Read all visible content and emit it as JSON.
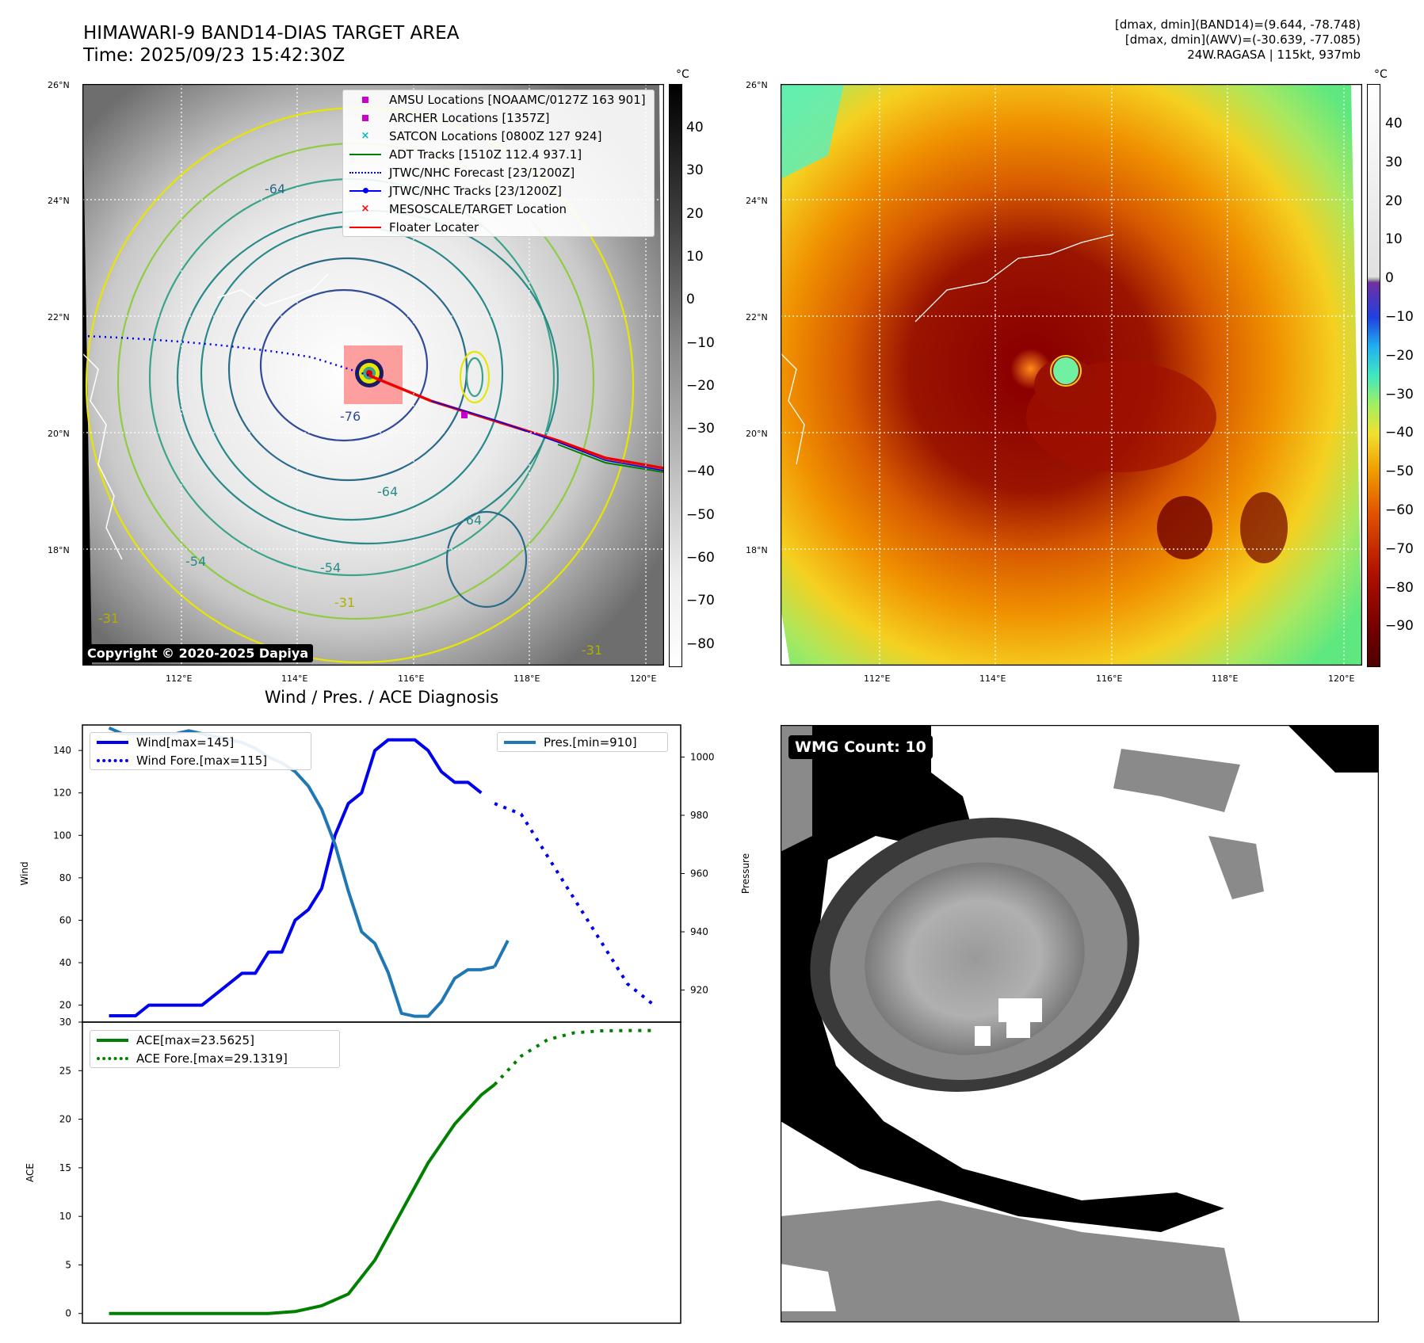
{
  "header": {
    "title_line1": "HIMAWARI-9 BAND14-DIAS TARGET AREA",
    "title_line2": "Time: 2025/09/23 15:42:30Z",
    "right_line1": "[dmax, dmin](BAND14)=(9.644, -78.748)",
    "right_line2": "[dmax, dmin](AWV)=(-30.639, -77.085)",
    "right_line3": "24W.RAGASA | 115kt, 937mb"
  },
  "map": {
    "lat_ticks": [
      "26°N",
      "24°N",
      "22°N",
      "20°N",
      "18°N"
    ],
    "lon_ticks": [
      "112°E",
      "114°E",
      "116°E",
      "118°E",
      "120°E"
    ],
    "colorbar_unit": "°C",
    "left_cb_ticks": [
      "40",
      "30",
      "20",
      "10",
      "0",
      "−10",
      "−20",
      "−30",
      "−40",
      "−50",
      "−60",
      "−70",
      "−80"
    ],
    "right_cb_ticks": [
      "40",
      "30",
      "20",
      "10",
      "0",
      "−10",
      "−20",
      "−30",
      "−40",
      "−50",
      "−60",
      "−70",
      "−80",
      "−90"
    ],
    "copyright": "Copyright © 2020-2025 Dapiya",
    "contour_labels": [
      "-76",
      "-64",
      "-64",
      "-54",
      "-54",
      "-31",
      "-31",
      "-31",
      "-64"
    ],
    "legend": [
      {
        "label": "AMSU Locations [NOAAMC/0127Z 163 901]",
        "color": "#cc00cc",
        "marker": "square"
      },
      {
        "label": "ARCHER Locations [1357Z]",
        "color": "#cc00cc",
        "marker": "square"
      },
      {
        "label": "SATCON Locations [0800Z 127 924]",
        "color": "#00bbbb",
        "marker": "x"
      },
      {
        "label": "ADT Tracks [1510Z 112.4 937.1]",
        "color": "#008000",
        "marker": "line"
      },
      {
        "label": "JTWC/NHC Forecast [23/1200Z]",
        "color": "#0000ff",
        "marker": "dotted"
      },
      {
        "label": "JTWC/NHC Tracks [23/1200Z]",
        "color": "#0000ff",
        "marker": "line-dot"
      },
      {
        "label": "MESOSCALE/TARGET Location",
        "color": "#ff0000",
        "marker": "x"
      },
      {
        "label": "Floater Locater",
        "color": "#ff0000",
        "marker": "line"
      }
    ]
  },
  "wmg": {
    "label": "WMG Count: 10"
  },
  "chart_data": [
    {
      "type": "line",
      "title": "Wind / Pres. / ACE Diagnosis",
      "ylabel": "Wind",
      "ylabel_right": "Pressure",
      "ylim": [
        12,
        152
      ],
      "ylim_right": [
        909,
        1011
      ],
      "yticks": [
        20,
        40,
        60,
        80,
        100,
        120,
        140
      ],
      "yticks_right": [
        920,
        940,
        960,
        980,
        1000
      ],
      "x": [
        0,
        1,
        2,
        3,
        4,
        5,
        6,
        7,
        8,
        9,
        10,
        11,
        12,
        13,
        14,
        15,
        16,
        17,
        18,
        19,
        20,
        21,
        22,
        23,
        24,
        25,
        26,
        27,
        28,
        29,
        30,
        31,
        32,
        33,
        34,
        35,
        36,
        37,
        38,
        39,
        40
      ],
      "series": [
        {
          "name": "Wind[max=145]",
          "axis": "left",
          "color": "#0000ee",
          "style": "solid",
          "x": [
            0,
            1,
            2,
            3,
            4,
            5,
            6,
            7,
            8,
            9,
            10,
            11,
            12,
            13,
            14,
            15,
            16,
            17,
            18,
            19,
            20,
            21,
            22,
            23,
            24,
            25,
            26,
            27,
            28
          ],
          "values": [
            15,
            15,
            15,
            20,
            20,
            20,
            20,
            20,
            25,
            30,
            35,
            35,
            45,
            45,
            60,
            65,
            75,
            100,
            115,
            120,
            140,
            145,
            145,
            145,
            140,
            130,
            125,
            125,
            120
          ]
        },
        {
          "name": "Wind Fore.[max=115]",
          "axis": "left",
          "color": "#0000ee",
          "style": "dotted",
          "x": [
            29,
            31,
            33,
            35,
            37,
            39,
            41
          ],
          "values": [
            115,
            110,
            90,
            70,
            50,
            30,
            20
          ]
        },
        {
          "name": "Pres.[min=910]",
          "axis": "right",
          "color": "#1f77b4",
          "style": "solid",
          "x": [
            0,
            1,
            2,
            3,
            4,
            5,
            6,
            7,
            8,
            9,
            10,
            11,
            12,
            13,
            14,
            15,
            16,
            17,
            18,
            19,
            20,
            21,
            22,
            23,
            24,
            25,
            26,
            27,
            28,
            29
          ],
          "values": [
            1010,
            1008,
            1008,
            1008,
            1008,
            1008,
            1009,
            1008,
            1007,
            1006,
            1005,
            1003,
            1000,
            998,
            995,
            990,
            982,
            970,
            954,
            940,
            936,
            926,
            912,
            911,
            911,
            916,
            924,
            927,
            927,
            928
          ]
        },
        {
          "name": "",
          "axis": "right",
          "color": "#1f77b4",
          "style": "solid",
          "x": [
            29,
            30
          ],
          "values": [
            928,
            937
          ]
        }
      ]
    },
    {
      "type": "line",
      "ylabel": "ACE",
      "ylim": [
        -1,
        30
      ],
      "yticks": [
        0,
        5,
        10,
        15,
        20,
        25,
        30
      ],
      "series": [
        {
          "name": "ACE[max=23.5625]",
          "color": "#008000",
          "style": "solid",
          "x": [
            0,
            2,
            4,
            6,
            8,
            10,
            12,
            14,
            16,
            18,
            20,
            22,
            24,
            26,
            28,
            29
          ],
          "values": [
            0,
            0,
            0,
            0,
            0,
            0,
            0,
            0.2,
            0.8,
            2.0,
            5.5,
            10.5,
            15.5,
            19.5,
            22.5,
            23.5625
          ]
        },
        {
          "name": "ACE Fore.[max=29.1319]",
          "color": "#008000",
          "style": "dotted",
          "x": [
            29,
            31,
            33,
            35,
            37,
            39,
            41
          ],
          "values": [
            23.5625,
            26.5,
            28.2,
            28.9,
            29.1,
            29.13,
            29.13
          ]
        }
      ]
    }
  ]
}
